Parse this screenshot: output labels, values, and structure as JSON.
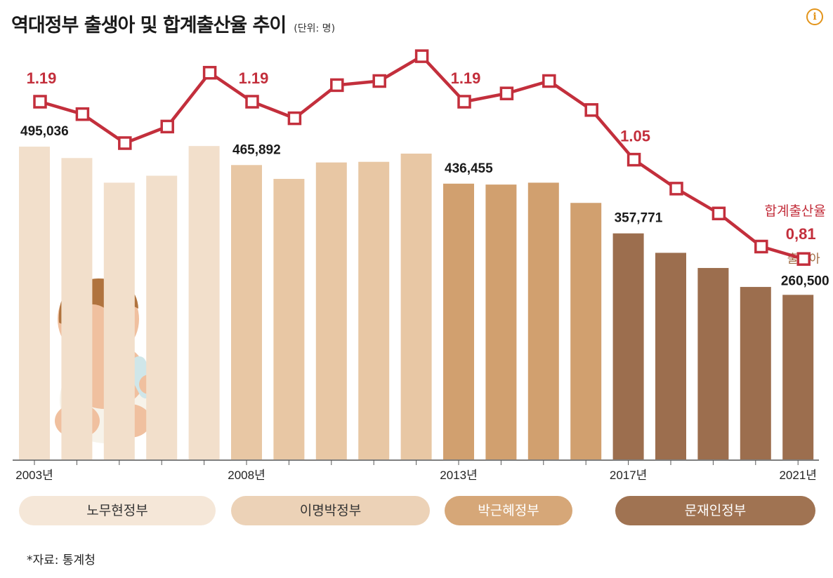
{
  "header": {
    "title": "역대정부 출생아 및 합계출산율 추이",
    "unit": "(단위: 명)",
    "info_icon": "info-circle-icon"
  },
  "source": "*자료: 통계청",
  "colors": {
    "line": "#c32f3c",
    "roh": "#f2dfcb",
    "lee": "#e8c7a4",
    "park": "#d1a06f",
    "moon": "#9c6e4e",
    "pill_roh": "#f5e7d8",
    "pill_lee": "#ecd2b7",
    "pill_park": "#d6a778",
    "pill_moon": "#a07352"
  },
  "governments": [
    {
      "name": "노무현정부",
      "color_key": "pill_roh"
    },
    {
      "name": "이명박정부",
      "color_key": "pill_lee"
    },
    {
      "name": "박근혜정부",
      "color_key": "pill_park"
    },
    {
      "name": "문재인정부",
      "color_key": "pill_moon"
    }
  ],
  "chart_data": {
    "type": "bar",
    "x": [
      2003,
      2004,
      2005,
      2006,
      2007,
      2008,
      2009,
      2010,
      2011,
      2012,
      2013,
      2014,
      2015,
      2016,
      2017,
      2018,
      2019,
      2020,
      2021
    ],
    "tick_labels": [
      {
        "index": 0,
        "label": "2003년"
      },
      {
        "index": 5,
        "label": "2008년"
      },
      {
        "index": 10,
        "label": "2013년"
      },
      {
        "index": 14,
        "label": "2017년"
      },
      {
        "index": 18,
        "label": "2021년"
      }
    ],
    "series": [
      {
        "name": "출생아",
        "type": "bar",
        "values": [
          495036,
          477000,
          438000,
          449000,
          496000,
          465892,
          444000,
          470000,
          471000,
          484000,
          436455,
          435000,
          438000,
          406000,
          357771,
          327000,
          303000,
          273000,
          260500
        ],
        "colors_by_government": [
          "roh",
          "roh",
          "roh",
          "roh",
          "roh",
          "lee",
          "lee",
          "lee",
          "lee",
          "lee",
          "park",
          "park",
          "park",
          "park",
          "moon",
          "moon",
          "moon",
          "moon",
          "moon"
        ]
      },
      {
        "name": "합계출산율",
        "type": "line",
        "values": [
          1.19,
          1.16,
          1.09,
          1.13,
          1.26,
          1.19,
          1.15,
          1.23,
          1.24,
          1.3,
          1.19,
          1.21,
          1.24,
          1.17,
          1.05,
          0.98,
          0.92,
          0.84,
          0.81
        ]
      }
    ],
    "bar_labels": [
      {
        "index": 0,
        "text": "495,036"
      },
      {
        "index": 5,
        "text": "465,892"
      },
      {
        "index": 10,
        "text": "436,455"
      },
      {
        "index": 14,
        "text": "357,771"
      },
      {
        "index": 18,
        "text": "260,500",
        "caption": "출생아"
      }
    ],
    "line_labels": [
      {
        "index": 0,
        "text": "1.19"
      },
      {
        "index": 5,
        "text": "1.19"
      },
      {
        "index": 10,
        "text": "1.19"
      },
      {
        "index": 14,
        "text": "1.05"
      },
      {
        "index": 18,
        "text": "0,81",
        "caption": "합계출산율"
      }
    ],
    "bar_ylim": [
      0,
      530000
    ],
    "line_ylim": [
      0.6,
      1.45
    ],
    "grid": false
  }
}
